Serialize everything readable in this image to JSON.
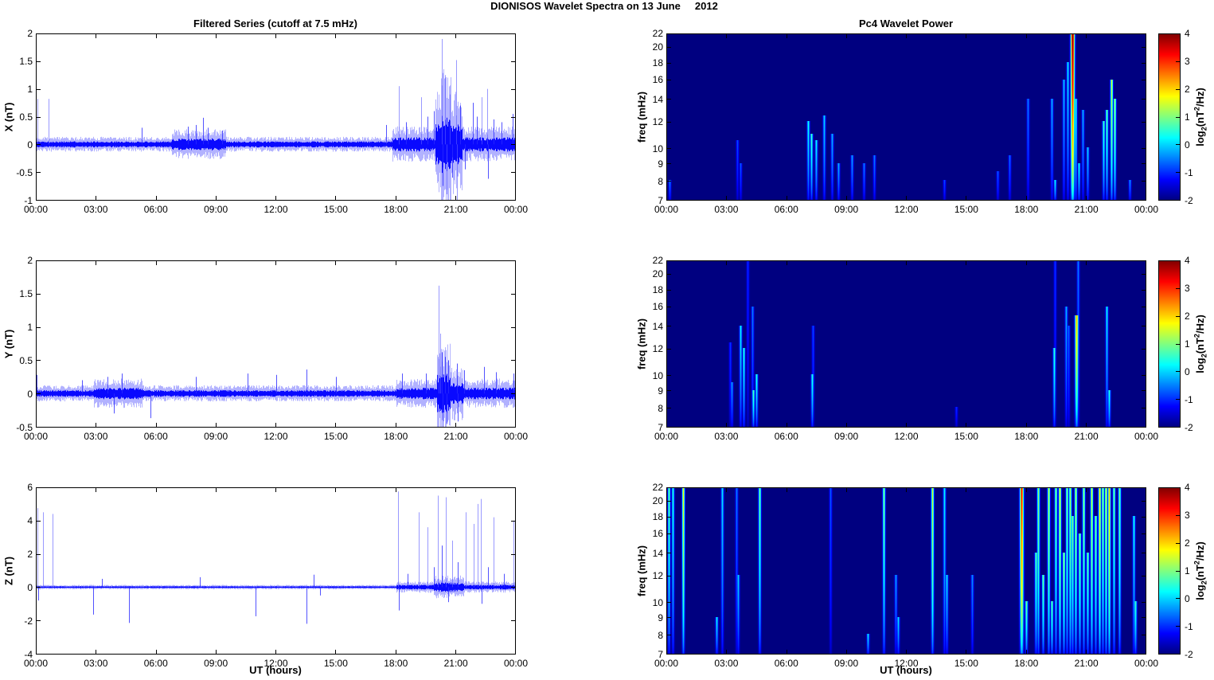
{
  "figure_title": "DIONISOS Wavelet Spectra on 13 June     2012",
  "time_ticks": [
    "00:00",
    "03:00",
    "06:00",
    "09:00",
    "12:00",
    "15:00",
    "18:00",
    "21:00",
    "00:00"
  ],
  "left_column": {
    "title": "Filtered Series (cutoff at 7.5 mHz)",
    "xlabel": "UT (hours)"
  },
  "right_column": {
    "title": "Pc4 Wavelet Power",
    "xlabel": "UT (hours)",
    "ylabel": "freq (mHz)",
    "colorbar": {
      "ticks": [
        "4",
        "3",
        "2",
        "1",
        "0",
        "-1",
        "-2"
      ],
      "range": [
        -2,
        4
      ],
      "label": {
        "pre": "log",
        "sub": "2",
        "mid": "(nT",
        "sup": "2",
        "suf": "/Hz)"
      }
    }
  },
  "colors": {
    "line_blue": "#0000ff",
    "heat_background": "#00008f",
    "axis": "#000000",
    "page_background": "#ffffff"
  },
  "chart_data": [
    {
      "id": "x-filtered-series",
      "type": "line",
      "ylabel": "X (nT)",
      "ylim": [
        -1,
        2
      ],
      "yticks": [
        "2",
        "1.5",
        "1",
        "0.5",
        "0",
        "-0.5",
        "-1"
      ],
      "x_range_hours": [
        0,
        24
      ],
      "grid": false,
      "noise_base": 0.055,
      "noise_bursts": [
        [
          6.8,
          9.5,
          0.11
        ],
        [
          17.8,
          24,
          0.13
        ],
        [
          19.95,
          21.3,
          0.38
        ],
        [
          20.25,
          20.75,
          0.55
        ]
      ],
      "spikes": [
        [
          0.08,
          0.82
        ],
        [
          0.62,
          0.82
        ],
        [
          5.3,
          0.3
        ],
        [
          7.6,
          0.32
        ],
        [
          8.0,
          0.35
        ],
        [
          8.35,
          0.48
        ],
        [
          8.6,
          0.3
        ],
        [
          9.3,
          0.25
        ],
        [
          17.5,
          0.35
        ],
        [
          18.15,
          1.05
        ],
        [
          18.5,
          0.4
        ],
        [
          19.25,
          0.85
        ],
        [
          19.6,
          0.5
        ],
        [
          19.9,
          0.6
        ],
        [
          20.3,
          1.9
        ],
        [
          20.35,
          -0.75
        ],
        [
          20.45,
          1.25
        ],
        [
          20.55,
          -0.9
        ],
        [
          20.7,
          0.9
        ],
        [
          20.8,
          -0.6
        ],
        [
          21.0,
          1.52
        ],
        [
          21.05,
          -1.0
        ],
        [
          21.2,
          0.7
        ],
        [
          21.45,
          -0.45
        ],
        [
          21.85,
          0.75
        ],
        [
          22.05,
          0.5
        ],
        [
          22.3,
          0.85
        ],
        [
          22.55,
          1.0
        ],
        [
          22.6,
          -0.62
        ],
        [
          22.9,
          0.45
        ],
        [
          23.3,
          0.4
        ],
        [
          23.85,
          0.55
        ]
      ]
    },
    {
      "id": "x-wavelet-power",
      "type": "heatmap",
      "ylabel": "freq (mHz)",
      "freq_range": [
        7,
        22
      ],
      "freq_ticks": [
        "22",
        "20",
        "18",
        "16",
        "14",
        "12",
        "10",
        "9",
        "8",
        "7"
      ],
      "clim": [
        -2,
        4
      ],
      "x_range_hours": [
        0,
        24
      ],
      "streaks": [
        [
          0.15,
          8,
          -0.5
        ],
        [
          3.55,
          10.5,
          -0.8
        ],
        [
          3.7,
          9,
          -0.7
        ],
        [
          7.1,
          12,
          0.3
        ],
        [
          7.25,
          11,
          0.6
        ],
        [
          7.5,
          10.5,
          0.2
        ],
        [
          7.9,
          12.5,
          0.0
        ],
        [
          8.3,
          11,
          -0.2
        ],
        [
          8.6,
          9,
          -0.2
        ],
        [
          9.3,
          9.5,
          -0.3
        ],
        [
          9.9,
          9,
          -0.5
        ],
        [
          10.4,
          9.5,
          -0.5
        ],
        [
          13.9,
          8,
          -0.8
        ],
        [
          16.6,
          8.5,
          -0.7
        ],
        [
          17.2,
          9.5,
          -0.6
        ],
        [
          18.1,
          14,
          -0.5
        ],
        [
          19.3,
          14,
          -0.2
        ],
        [
          19.45,
          8,
          0.2
        ],
        [
          19.9,
          16,
          -0.1
        ],
        [
          20.1,
          18,
          0.1
        ],
        [
          20.35,
          22,
          4.0,
          1.7
        ],
        [
          20.5,
          14,
          0.5
        ],
        [
          20.65,
          9,
          0.3
        ],
        [
          20.85,
          13,
          -0.2
        ],
        [
          21.1,
          10,
          0.0
        ],
        [
          21.9,
          12,
          0.6
        ],
        [
          22.05,
          13,
          0.8
        ],
        [
          22.3,
          16,
          1.6
        ],
        [
          22.45,
          14,
          1.2
        ],
        [
          23.2,
          8,
          -0.4
        ]
      ]
    },
    {
      "id": "y-filtered-series",
      "type": "line",
      "ylabel": "Y (nT)",
      "ylim": [
        -0.5,
        2
      ],
      "yticks": [
        "2",
        "1.5",
        "1",
        "0.5",
        "0",
        "-0.5"
      ],
      "x_range_hours": [
        0,
        24
      ],
      "grid": false,
      "noise_base": 0.05,
      "noise_bursts": [
        [
          2.9,
          5.3,
          0.09
        ],
        [
          18,
          24,
          0.09
        ],
        [
          20.05,
          20.7,
          0.3
        ],
        [
          20.7,
          21.35,
          0.17
        ]
      ],
      "spikes": [
        [
          0.05,
          0.28
        ],
        [
          2.3,
          0.2
        ],
        [
          3.6,
          0.25
        ],
        [
          3.9,
          -0.3
        ],
        [
          4.3,
          0.3
        ],
        [
          5.75,
          -0.37
        ],
        [
          8.0,
          0.25
        ],
        [
          10.6,
          0.3
        ],
        [
          12.0,
          0.28
        ],
        [
          13.55,
          0.36
        ],
        [
          15.0,
          0.25
        ],
        [
          18.3,
          0.3
        ],
        [
          19.5,
          0.3
        ],
        [
          20.15,
          1.62
        ],
        [
          20.2,
          0.9
        ],
        [
          20.3,
          0.62
        ],
        [
          20.35,
          -0.5
        ],
        [
          20.45,
          0.55
        ],
        [
          20.55,
          -0.45
        ],
        [
          20.6,
          0.5
        ],
        [
          21.05,
          0.45
        ],
        [
          21.1,
          -0.42
        ],
        [
          21.4,
          0.35
        ],
        [
          22.4,
          0.4
        ],
        [
          23.0,
          0.32
        ],
        [
          23.9,
          0.3
        ]
      ]
    },
    {
      "id": "y-wavelet-power",
      "type": "heatmap",
      "ylabel": "freq (mHz)",
      "freq_range": [
        7,
        22
      ],
      "freq_ticks": [
        "22",
        "20",
        "18",
        "16",
        "14",
        "12",
        "10",
        "9",
        "8",
        "7"
      ],
      "clim": [
        -2,
        4
      ],
      "x_range_hours": [
        0,
        24
      ],
      "streaks": [
        [
          3.2,
          12.5,
          -0.9
        ],
        [
          3.25,
          9.5,
          -0.3
        ],
        [
          3.7,
          14,
          0.2
        ],
        [
          3.85,
          12,
          0.4
        ],
        [
          4.05,
          22,
          -1.0
        ],
        [
          4.3,
          16,
          -0.5
        ],
        [
          4.35,
          9,
          0.7
        ],
        [
          4.5,
          10,
          0.4
        ],
        [
          7.3,
          10,
          0.4
        ],
        [
          7.35,
          14,
          -0.8
        ],
        [
          14.5,
          8,
          -1.0
        ],
        [
          19.4,
          12,
          0.5
        ],
        [
          19.45,
          22,
          -0.9
        ],
        [
          20.0,
          16,
          -0.2
        ],
        [
          20.15,
          14,
          -0.6
        ],
        [
          20.55,
          15,
          2.2,
          1.5
        ],
        [
          20.6,
          22,
          -0.5
        ],
        [
          22.05,
          16,
          0.2
        ],
        [
          22.15,
          9,
          0.5
        ]
      ]
    },
    {
      "id": "z-filtered-series",
      "type": "line",
      "ylabel": "Z (nT)",
      "ylim": [
        -4,
        6
      ],
      "yticks": [
        "6",
        "4",
        "2",
        "0",
        "-2",
        "-4"
      ],
      "x_range_hours": [
        0,
        24
      ],
      "grid": false,
      "noise_base": 0.055,
      "noise_bursts": [
        [
          18,
          24,
          0.14
        ],
        [
          19.9,
          21.4,
          0.28
        ]
      ],
      "spikes": [
        [
          0.08,
          4.75
        ],
        [
          0.12,
          -0.8
        ],
        [
          0.35,
          4.5
        ],
        [
          0.85,
          4.4
        ],
        [
          2.85,
          -1.65
        ],
        [
          3.3,
          0.5
        ],
        [
          4.65,
          -2.15
        ],
        [
          8.2,
          0.6
        ],
        [
          11.0,
          -1.75
        ],
        [
          13.55,
          -2.2
        ],
        [
          13.9,
          0.75
        ],
        [
          14.2,
          -0.5
        ],
        [
          18.1,
          5.75
        ],
        [
          18.15,
          -1.4
        ],
        [
          18.6,
          0.8
        ],
        [
          19.15,
          4.5
        ],
        [
          19.6,
          3.6
        ],
        [
          19.9,
          1.2
        ],
        [
          20.1,
          5.5
        ],
        [
          20.3,
          2.5
        ],
        [
          20.5,
          5.4
        ],
        [
          20.6,
          -0.9
        ],
        [
          20.8,
          2.8
        ],
        [
          21.1,
          1.5
        ],
        [
          21.5,
          4.5
        ],
        [
          21.9,
          3.8
        ],
        [
          22.1,
          5.0
        ],
        [
          22.25,
          5.3
        ],
        [
          22.3,
          -1.0
        ],
        [
          22.6,
          1.2
        ],
        [
          22.9,
          4.2
        ],
        [
          23.4,
          0.8
        ],
        [
          23.9,
          4.0
        ]
      ]
    },
    {
      "id": "z-wavelet-power",
      "type": "heatmap",
      "ylabel": "freq (mHz)",
      "freq_range": [
        7,
        22
      ],
      "freq_ticks": [
        "22",
        "20",
        "18",
        "16",
        "14",
        "12",
        "10",
        "9",
        "8",
        "7"
      ],
      "clim": [
        -2,
        4
      ],
      "x_range_hours": [
        0,
        24
      ],
      "streaks": [
        [
          0.1,
          22,
          0.8
        ],
        [
          0.3,
          22,
          0.4
        ],
        [
          0.85,
          22,
          1.8
        ],
        [
          2.5,
          9,
          0.2
        ],
        [
          2.8,
          22,
          0.1
        ],
        [
          3.5,
          22,
          -0.5
        ],
        [
          3.6,
          12,
          0.0
        ],
        [
          4.65,
          22,
          0.9
        ],
        [
          8.2,
          22,
          -0.7
        ],
        [
          10.1,
          8,
          0.1
        ],
        [
          10.9,
          22,
          1.0
        ],
        [
          11.5,
          12,
          -0.3
        ],
        [
          11.6,
          9,
          0.1
        ],
        [
          13.3,
          22,
          1.6
        ],
        [
          13.9,
          22,
          0.2
        ],
        [
          14.05,
          12,
          0.1
        ],
        [
          15.3,
          12,
          -0.4
        ],
        [
          17.8,
          22,
          3.3,
          1.6
        ],
        [
          18.0,
          10,
          0.9
        ],
        [
          18.5,
          14,
          0.8
        ],
        [
          18.6,
          22,
          1.2
        ],
        [
          18.85,
          12,
          0.9
        ],
        [
          19.15,
          22,
          1.5
        ],
        [
          19.3,
          10,
          0.8
        ],
        [
          19.5,
          22,
          1.0
        ],
        [
          19.7,
          22,
          1.7
        ],
        [
          19.9,
          14,
          1.2
        ],
        [
          20.05,
          22,
          1.0
        ],
        [
          20.2,
          22,
          1.3
        ],
        [
          20.35,
          18,
          1.0
        ],
        [
          20.5,
          22,
          1.4
        ],
        [
          20.7,
          16,
          1.1
        ],
        [
          20.9,
          22,
          1.2
        ],
        [
          21.1,
          14,
          0.9
        ],
        [
          21.3,
          22,
          1.6
        ],
        [
          21.5,
          18,
          1.0
        ],
        [
          21.7,
          22,
          2.0
        ],
        [
          21.85,
          22,
          1.1
        ],
        [
          22.0,
          22,
          1.5
        ],
        [
          22.15,
          22,
          2.2
        ],
        [
          22.4,
          22,
          0.9
        ],
        [
          22.7,
          22,
          1.0
        ],
        [
          23.4,
          18,
          0.3
        ],
        [
          23.5,
          10,
          0.6
        ]
      ]
    }
  ]
}
